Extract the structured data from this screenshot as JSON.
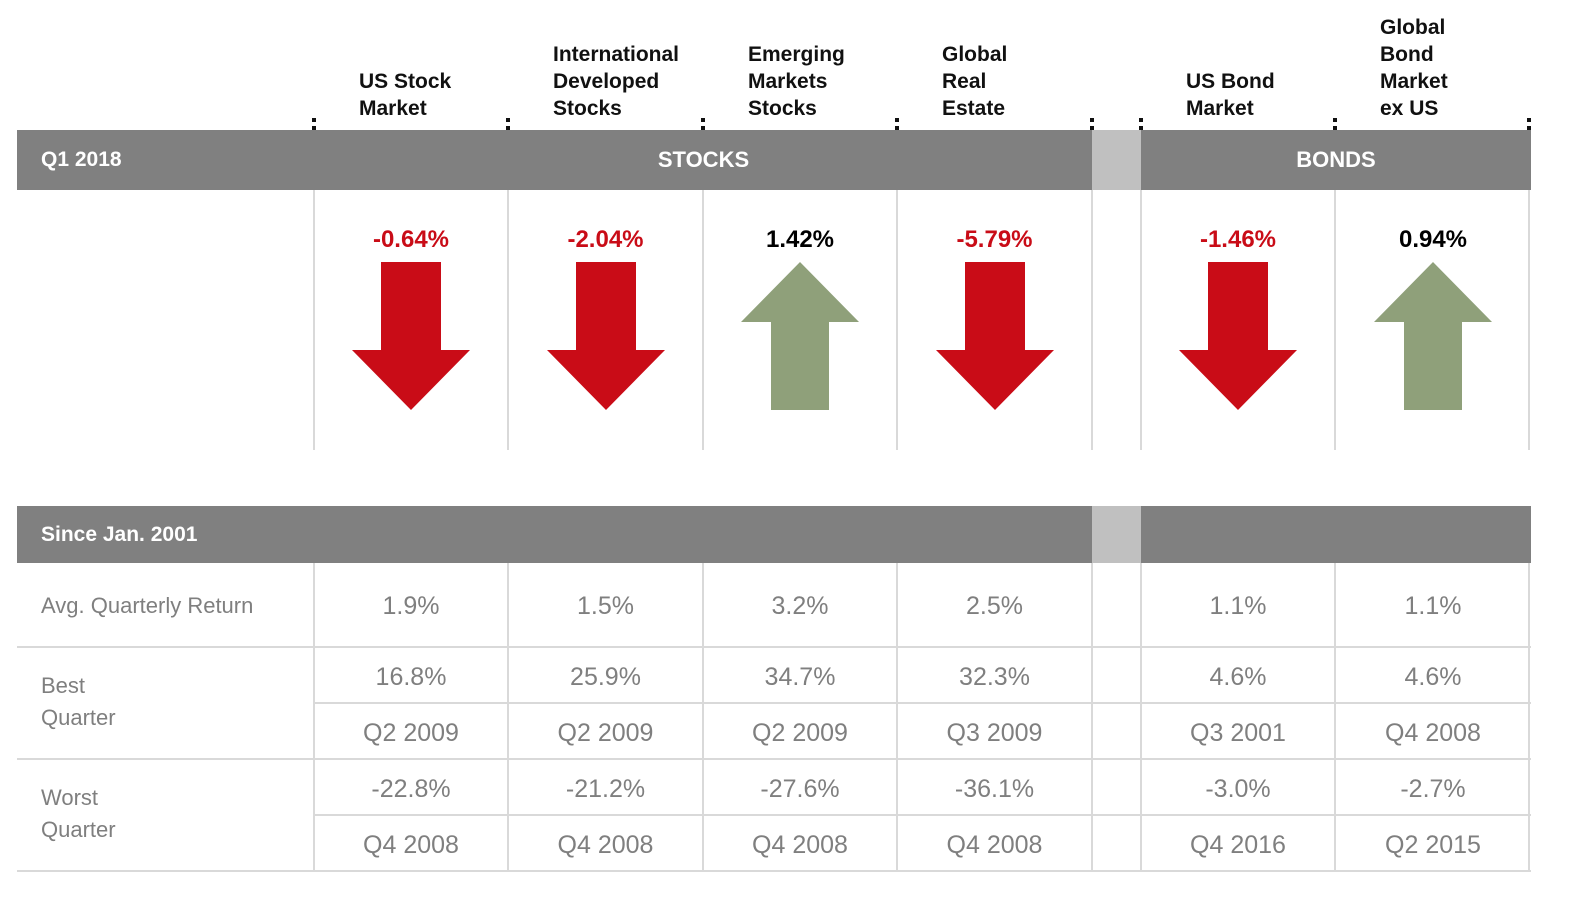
{
  "columns": [
    {
      "name": "US Stock\nMarket",
      "q1_return": "-0.64%",
      "direction": "down",
      "avg": "1.9%",
      "best": "16.8%",
      "best_q": "Q2 2009",
      "worst": "-22.8%",
      "worst_q": "Q4 2008"
    },
    {
      "name": "International\nDeveloped\nStocks",
      "q1_return": "-2.04%",
      "direction": "down",
      "avg": "1.5%",
      "best": "25.9%",
      "best_q": "Q2 2009",
      "worst": "-21.2%",
      "worst_q": "Q4 2008"
    },
    {
      "name": "Emerging\nMarkets\nStocks",
      "q1_return": "1.42%",
      "direction": "up",
      "avg": "3.2%",
      "best": "34.7%",
      "best_q": "Q2 2009",
      "worst": "-27.6%",
      "worst_q": "Q4 2008"
    },
    {
      "name": "Global\nReal\nEstate",
      "q1_return": "-5.79%",
      "direction": "down",
      "avg": "2.5%",
      "best": "32.3%",
      "best_q": "Q3 2009",
      "worst": "-36.1%",
      "worst_q": "Q4 2008"
    },
    {
      "name": "US Bond\nMarket",
      "q1_return": "-1.46%",
      "direction": "down",
      "avg": "1.1%",
      "best": "4.6%",
      "best_q": "Q3 2001",
      "worst": "-3.0%",
      "worst_q": "Q4 2016"
    },
    {
      "name": "Global\nBond\nMarket\nex US",
      "q1_return": "0.94%",
      "direction": "up",
      "avg": "1.1%",
      "best": "4.6%",
      "best_q": "Q4 2008",
      "worst": "-2.7%",
      "worst_q": "Q2 2015"
    }
  ],
  "header_bar": {
    "period": "Q1 2018",
    "stocks_label": "STOCKS",
    "bonds_label": "BONDS"
  },
  "since_bar": {
    "label": "Since Jan. 2001"
  },
  "row_labels": {
    "avg": "Avg. Quarterly Return",
    "best": "Best\nQuarter",
    "worst": "Worst\nQuarter"
  },
  "colors": {
    "negative": "#c90c17",
    "positive": "#000000",
    "arrow_down": "#c90c17",
    "arrow_up": "#8fa07a",
    "bar": "#808080",
    "gap": "#c0c0c0",
    "lines": "#d9d9d9",
    "table_text": "#7f7f7f"
  },
  "chart_data": {
    "type": "table",
    "categories": [
      "US Stock Market",
      "International Developed Stocks",
      "Emerging Markets Stocks",
      "Global Real Estate",
      "US Bond Market",
      "Global Bond Market ex US"
    ],
    "series": [
      {
        "name": "Q1 2018",
        "values": [
          -0.64,
          -2.04,
          1.42,
          -5.79,
          -1.46,
          0.94
        ]
      },
      {
        "name": "Avg. Quarterly Return",
        "values": [
          1.9,
          1.5,
          3.2,
          2.5,
          1.1,
          1.1
        ]
      },
      {
        "name": "Best Quarter",
        "values": [
          16.8,
          25.9,
          34.7,
          32.3,
          4.6,
          4.6
        ]
      },
      {
        "name": "Worst Quarter",
        "values": [
          -22.8,
          -21.2,
          -27.6,
          -36.1,
          -3.0,
          -2.7
        ]
      }
    ]
  }
}
